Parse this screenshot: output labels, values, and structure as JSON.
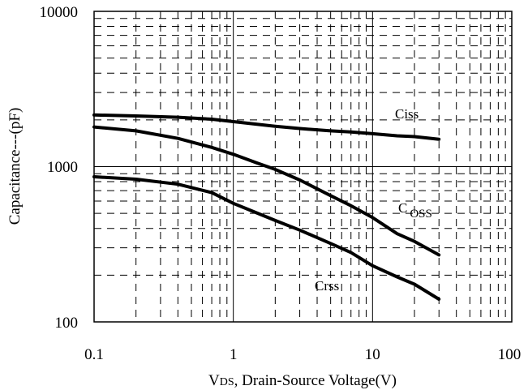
{
  "chart_data": {
    "type": "line",
    "xscale": "log",
    "yscale": "log",
    "xlim": [
      0.1,
      100
    ],
    "ylim": [
      100,
      10000
    ],
    "x_ticks": [
      "0.1",
      "1",
      "10",
      "100"
    ],
    "y_ticks": [
      "100",
      "1000",
      "10000"
    ],
    "xlabel_prefix": "V",
    "xlabel_sub": "DS",
    "xlabel_rest": ", Drain-Source Voltage(V)",
    "ylabel": "Capacitance---(pF)",
    "grid": true,
    "series": [
      {
        "name": "Ciss",
        "label_main": "Ciss",
        "label_sub": "",
        "x": [
          0.1,
          0.2,
          0.4,
          0.7,
          1.0,
          2.0,
          3.0,
          5.0,
          7.0,
          10.0,
          15.0,
          20.0,
          30.0
        ],
        "y": [
          2150,
          2120,
          2080,
          2020,
          1950,
          1820,
          1760,
          1700,
          1670,
          1630,
          1580,
          1560,
          1500
        ]
      },
      {
        "name": "Coss",
        "label_main": "C",
        "label_sub": "OSS",
        "x": [
          0.1,
          0.2,
          0.4,
          0.7,
          1.0,
          1.5,
          2.0,
          3.0,
          5.0,
          7.0,
          10.0,
          15.0,
          20.0,
          30.0
        ],
        "y": [
          1800,
          1700,
          1520,
          1330,
          1200,
          1050,
          960,
          820,
          650,
          560,
          470,
          370,
          330,
          270
        ]
      },
      {
        "name": "Crss",
        "label_main": "Crss",
        "label_sub": "",
        "x": [
          0.1,
          0.2,
          0.4,
          0.7,
          1.0,
          1.5,
          2.0,
          3.0,
          5.0,
          7.0,
          10.0,
          15.0,
          20.0,
          30.0
        ],
        "y": [
          860,
          830,
          770,
          680,
          580,
          500,
          450,
          390,
          320,
          280,
          230,
          195,
          175,
          140
        ]
      }
    ]
  }
}
